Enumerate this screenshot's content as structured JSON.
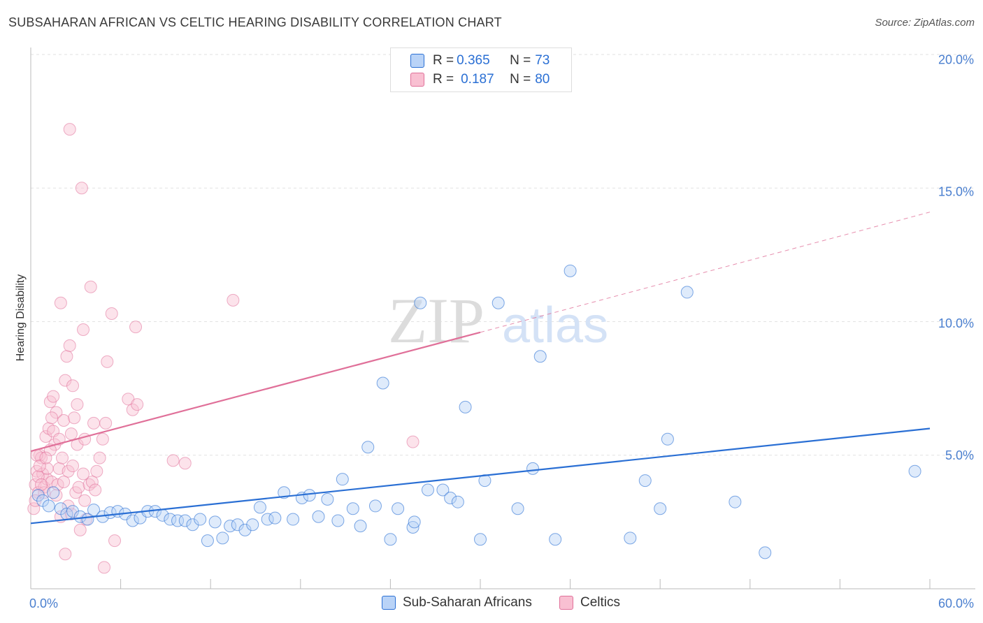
{
  "title": "SUBSAHARAN AFRICAN VS CELTIC HEARING DISABILITY CORRELATION CHART",
  "source": "Source: ZipAtlas.com",
  "watermark": {
    "zip": "ZIP",
    "atlas": "atlas"
  },
  "colors": {
    "blue": "#2a6fd4",
    "blue_fill": "#b9d3f7",
    "pink": "#e07099",
    "pink_fill": "#f9c0d2",
    "tick_text": "#4a7fcf",
    "grid": "#e2e2e2"
  },
  "legend": {
    "rows": [
      {
        "r_label": "R = ",
        "r_value": "0.365",
        "n_label": "N = ",
        "n_value": "73"
      },
      {
        "r_label": "R = ",
        "r_value": "0.187",
        "n_label": "N = ",
        "n_value": "80"
      }
    ]
  },
  "chart_data": {
    "type": "scatter",
    "title": "SUBSAHARAN AFRICAN VS CELTIC HEARING DISABILITY CORRELATION CHART",
    "xlabel": "",
    "ylabel": "Hearing Disability",
    "xlim": [
      0,
      60
    ],
    "ylim": [
      0,
      20
    ],
    "x_tick_labels": [
      "0.0%",
      "60.0%"
    ],
    "y_ticks": [
      5,
      10,
      15,
      20
    ],
    "y_tick_labels": [
      "5.0%",
      "10.0%",
      "15.0%",
      "20.0%"
    ],
    "grid": "horizontal dashed",
    "legend_position": "top-center",
    "series": [
      {
        "name": "Sub-Saharan Africans",
        "color": "#2a6fd4",
        "trend": {
          "x": [
            0,
            60
          ],
          "y": [
            2.45,
            6.0
          ]
        },
        "points": [
          [
            0.5,
            3.5
          ],
          [
            0.8,
            3.3
          ],
          [
            1.2,
            3.1
          ],
          [
            1.5,
            3.6
          ],
          [
            2.0,
            3.0
          ],
          [
            2.4,
            2.8
          ],
          [
            2.8,
            2.9
          ],
          [
            3.3,
            2.7
          ],
          [
            3.8,
            2.6
          ],
          [
            4.2,
            2.95
          ],
          [
            4.8,
            2.7
          ],
          [
            5.3,
            2.85
          ],
          [
            5.8,
            2.9
          ],
          [
            6.3,
            2.8
          ],
          [
            6.8,
            2.55
          ],
          [
            7.3,
            2.65
          ],
          [
            7.8,
            2.9
          ],
          [
            8.3,
            2.9
          ],
          [
            8.8,
            2.75
          ],
          [
            9.3,
            2.6
          ],
          [
            9.8,
            2.55
          ],
          [
            10.3,
            2.55
          ],
          [
            10.8,
            2.4
          ],
          [
            11.3,
            2.6
          ],
          [
            11.8,
            1.8
          ],
          [
            12.3,
            2.5
          ],
          [
            12.8,
            1.9
          ],
          [
            13.3,
            2.35
          ],
          [
            13.8,
            2.4
          ],
          [
            14.3,
            2.2
          ],
          [
            14.8,
            2.4
          ],
          [
            15.3,
            3.05
          ],
          [
            15.8,
            2.6
          ],
          [
            16.3,
            2.65
          ],
          [
            16.9,
            3.6
          ],
          [
            17.5,
            2.6
          ],
          [
            18.1,
            3.4
          ],
          [
            18.6,
            3.5
          ],
          [
            19.2,
            2.7
          ],
          [
            19.8,
            3.35
          ],
          [
            20.5,
            2.55
          ],
          [
            20.8,
            4.1
          ],
          [
            21.5,
            3.0
          ],
          [
            22.0,
            2.35
          ],
          [
            22.5,
            5.3
          ],
          [
            23.0,
            3.1
          ],
          [
            23.5,
            7.7
          ],
          [
            24.0,
            1.85
          ],
          [
            24.5,
            3.0
          ],
          [
            25.5,
            2.3
          ],
          [
            25.6,
            2.5
          ],
          [
            26.0,
            10.7
          ],
          [
            26.5,
            3.7
          ],
          [
            27.5,
            3.7
          ],
          [
            28.0,
            3.4
          ],
          [
            28.5,
            3.25
          ],
          [
            29.0,
            6.8
          ],
          [
            30.0,
            1.85
          ],
          [
            30.3,
            4.05
          ],
          [
            31.2,
            10.7
          ],
          [
            32.5,
            3.0
          ],
          [
            33.5,
            4.5
          ],
          [
            34.0,
            8.7
          ],
          [
            35.0,
            1.85
          ],
          [
            36.0,
            11.9
          ],
          [
            40.0,
            1.9
          ],
          [
            41.0,
            4.05
          ],
          [
            42.0,
            3.0
          ],
          [
            42.5,
            5.6
          ],
          [
            43.8,
            11.1
          ],
          [
            47.0,
            3.25
          ],
          [
            49.0,
            1.35
          ],
          [
            59.0,
            4.4
          ]
        ]
      },
      {
        "name": "Celtics",
        "color": "#e07099",
        "trend": {
          "x": [
            0,
            30
          ],
          "y": [
            5.15,
            9.6
          ]
        },
        "trend_dashed": {
          "x": [
            30,
            60
          ],
          "y": [
            9.6,
            14.1
          ]
        },
        "points": [
          [
            0.2,
            3.0
          ],
          [
            0.3,
            3.9
          ],
          [
            0.4,
            4.4
          ],
          [
            0.5,
            3.6
          ],
          [
            0.6,
            5.0
          ],
          [
            0.7,
            4.9
          ],
          [
            0.8,
            4.3
          ],
          [
            0.9,
            3.8
          ],
          [
            1.0,
            5.7
          ],
          [
            1.1,
            4.1
          ],
          [
            1.2,
            6.0
          ],
          [
            1.3,
            7.0
          ],
          [
            1.4,
            4.0
          ],
          [
            1.5,
            7.2
          ],
          [
            1.6,
            5.4
          ],
          [
            1.7,
            6.6
          ],
          [
            1.8,
            3.9
          ],
          [
            1.9,
            4.5
          ],
          [
            2.0,
            10.7
          ],
          [
            2.0,
            2.7
          ],
          [
            2.1,
            4.9
          ],
          [
            2.2,
            6.3
          ],
          [
            2.3,
            7.8
          ],
          [
            2.3,
            1.3
          ],
          [
            2.4,
            8.7
          ],
          [
            2.5,
            4.4
          ],
          [
            2.6,
            9.1
          ],
          [
            2.6,
            17.2
          ],
          [
            2.7,
            5.8
          ],
          [
            2.7,
            2.8
          ],
          [
            2.8,
            7.6
          ],
          [
            2.9,
            6.4
          ],
          [
            3.0,
            3.6
          ],
          [
            3.1,
            5.4
          ],
          [
            3.2,
            3.8
          ],
          [
            3.3,
            2.2
          ],
          [
            3.4,
            15.0
          ],
          [
            3.5,
            9.7
          ],
          [
            3.6,
            5.6
          ],
          [
            3.6,
            3.3
          ],
          [
            3.7,
            2.6
          ],
          [
            3.9,
            3.9
          ],
          [
            4.0,
            11.3
          ],
          [
            4.1,
            4.0
          ],
          [
            4.2,
            6.2
          ],
          [
            4.4,
            4.4
          ],
          [
            4.6,
            4.9
          ],
          [
            4.8,
            5.6
          ],
          [
            4.9,
            0.8
          ],
          [
            5.0,
            6.2
          ],
          [
            5.1,
            8.5
          ],
          [
            5.4,
            10.3
          ],
          [
            5.6,
            1.8
          ],
          [
            6.5,
            7.1
          ],
          [
            6.8,
            6.7
          ],
          [
            7.0,
            9.8
          ],
          [
            7.1,
            6.9
          ],
          [
            9.5,
            4.8
          ],
          [
            10.3,
            4.7
          ],
          [
            13.5,
            10.8
          ],
          [
            25.5,
            5.5
          ],
          [
            0.5,
            4.2
          ],
          [
            0.9,
            3.6
          ],
          [
            1.1,
            4.5
          ],
          [
            1.5,
            5.9
          ],
          [
            1.3,
            5.2
          ],
          [
            0.7,
            3.9
          ],
          [
            1.7,
            3.5
          ],
          [
            2.2,
            4.0
          ],
          [
            0.4,
            5.0
          ],
          [
            0.6,
            4.6
          ],
          [
            1.4,
            6.4
          ],
          [
            2.5,
            3.1
          ],
          [
            3.5,
            4.3
          ],
          [
            4.3,
            3.7
          ],
          [
            0.3,
            3.3
          ],
          [
            1.9,
            5.6
          ],
          [
            2.8,
            4.6
          ],
          [
            3.1,
            6.9
          ],
          [
            1.0,
            4.9
          ]
        ]
      }
    ]
  }
}
